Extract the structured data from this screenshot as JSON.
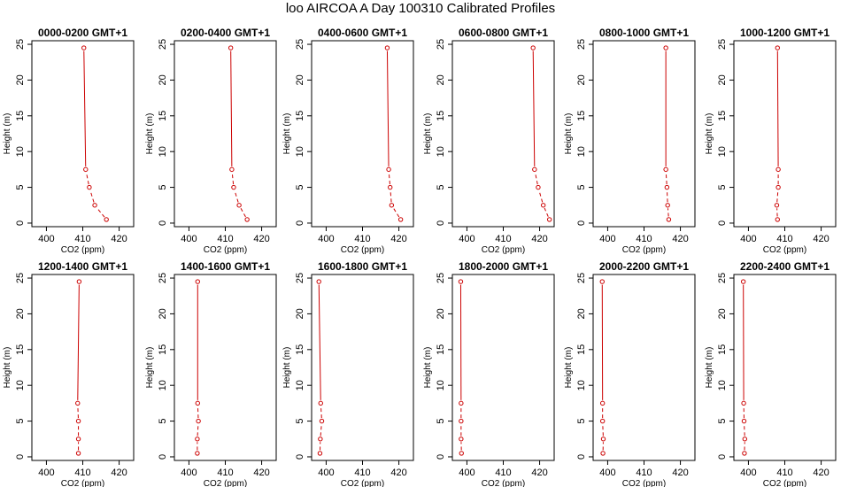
{
  "title": "loo AIRCOA A  Day 100310  Calibrated Profiles",
  "chart_data": {
    "type": "line",
    "layout": "2 rows x 6 panels",
    "xlabel": "CO2 (ppm)",
    "ylabel": "Height (m)",
    "xlim": [
      396,
      424
    ],
    "ylim": [
      -0.5,
      25.5
    ],
    "xticks": [
      400,
      410,
      420
    ],
    "yticks": [
      0,
      5,
      10,
      15,
      20,
      25
    ],
    "heights": [
      0.5,
      2.5,
      5,
      7.5,
      24.5
    ],
    "marker_color": "#cc0000",
    "line_color": "#cc0000",
    "panels": [
      {
        "title": "0000-0200 GMT+1",
        "co2": [
          416.5,
          413.3,
          411.8,
          410.8,
          410.3
        ]
      },
      {
        "title": "0200-0400 GMT+1",
        "co2": [
          416.0,
          413.8,
          412.3,
          411.8,
          411.5
        ]
      },
      {
        "title": "0400-0600 GMT+1",
        "co2": [
          420.5,
          418.0,
          417.6,
          417.2,
          416.8
        ]
      },
      {
        "title": "0600-0800 GMT+1",
        "co2": [
          422.7,
          421.0,
          419.6,
          418.6,
          418.2
        ]
      },
      {
        "title": "0800-1000 GMT+1",
        "co2": [
          416.8,
          416.5,
          416.3,
          416.0,
          416.0
        ]
      },
      {
        "title": "1000-1200 GMT+1",
        "co2": [
          408.0,
          407.8,
          408.2,
          408.2,
          408.0
        ]
      },
      {
        "title": "1200-1400 GMT+1",
        "co2": [
          408.8,
          408.8,
          408.8,
          408.6,
          409.0
        ]
      },
      {
        "title": "1400-1600 GMT+1",
        "co2": [
          402.3,
          402.3,
          402.6,
          402.4,
          402.4
        ]
      },
      {
        "title": "1600-1800 GMT+1",
        "co2": [
          398.3,
          398.4,
          398.8,
          398.5,
          398.0
        ]
      },
      {
        "title": "1800-2000 GMT+1",
        "co2": [
          398.5,
          398.4,
          398.4,
          398.4,
          398.3
        ]
      },
      {
        "title": "2000-2200 GMT+1",
        "co2": [
          398.7,
          398.8,
          398.6,
          398.6,
          398.5
        ]
      },
      {
        "title": "2200-2400 GMT+1",
        "co2": [
          398.9,
          399.0,
          398.8,
          398.7,
          398.6
        ]
      }
    ]
  }
}
